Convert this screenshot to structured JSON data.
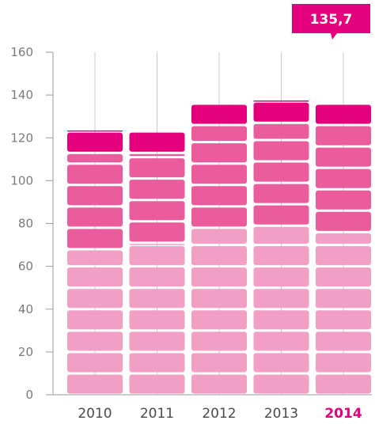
{
  "chart_data": {
    "type": "bar",
    "stacked": true,
    "categories": [
      "2010",
      "2011",
      "2012",
      "2013",
      "2014"
    ],
    "highlight_category": "2014",
    "series": [
      {
        "values": [
          68,
          71,
          78,
          79,
          76
        ],
        "color": "#f29fc5"
      },
      {
        "values": [
          45,
          42,
          48,
          48,
          50
        ],
        "color": "#eb5c9c"
      },
      {
        "values": [
          11,
          10,
          10,
          11,
          10
        ],
        "color": "#e4007c"
      }
    ],
    "y_ticks": [
      "0",
      "20",
      "40",
      "60",
      "80",
      "100",
      "120",
      "140",
      "160"
    ],
    "ylim": [
      0,
      160
    ],
    "grid": "vertical",
    "callout": {
      "label": "135,7",
      "value": 135.7,
      "category": "2014",
      "color": "#e4007c"
    },
    "axis_color": "#9a9a9a",
    "grid_color": "#c8c8c8"
  }
}
